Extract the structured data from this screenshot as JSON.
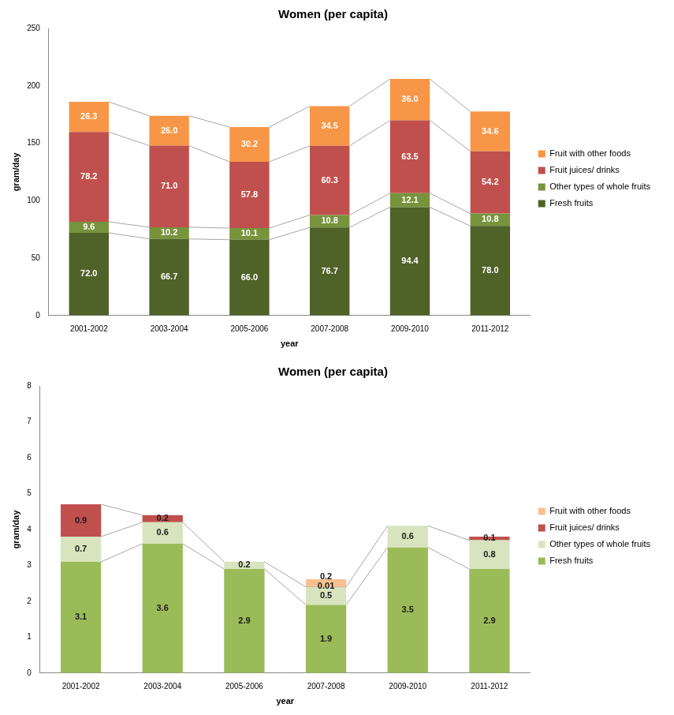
{
  "chart_data": [
    {
      "type": "bar",
      "title": "Women (per capita)",
      "x_label": "year",
      "y_label": "gram/day",
      "stacked": true,
      "grid": false,
      "legend": "right",
      "data_labels": true,
      "categories": [
        "2001-2002",
        "2003-2004",
        "2005-2006",
        "2007-2008",
        "2009-2010",
        "2011-2012"
      ],
      "ylim": [
        0,
        250
      ],
      "yticks": [
        0,
        50,
        100,
        150,
        200,
        250
      ],
      "series": [
        {
          "name": "Fresh fruits",
          "color": "#4f6228",
          "values": [
            72.0,
            66.7,
            66.0,
            76.7,
            94.4,
            78.0
          ],
          "value_labels": [
            "72.0",
            "66.7",
            "66.0",
            "76.7",
            "94.4",
            "78.0"
          ]
        },
        {
          "name": "Other types of whole fruits",
          "color": "#77933c",
          "values": [
            9.6,
            10.2,
            10.1,
            10.8,
            12.1,
            10.8
          ],
          "value_labels": [
            "9.6",
            "10.2",
            "10.1",
            "10.8",
            "12.1",
            "10.8"
          ]
        },
        {
          "name": "Fruit juices/ drinks",
          "color": "#c0504d",
          "values": [
            78.2,
            71.0,
            57.8,
            60.3,
            63.5,
            54.2
          ],
          "value_labels": [
            "78.2",
            "71.0",
            "57.8",
            "60.3",
            "63.5",
            "54.2"
          ]
        },
        {
          "name": "Fruit with other foods",
          "color": "#f79646",
          "values": [
            26.3,
            26.0,
            30.2,
            34.5,
            36.0,
            34.6
          ],
          "value_labels": [
            "26.3",
            "26.0",
            "30.2",
            "34.5",
            "36.0",
            "34.6"
          ]
        }
      ]
    },
    {
      "type": "bar",
      "title": "Women (per capita)",
      "x_label": "year",
      "y_label": "gram/day",
      "stacked": true,
      "grid": false,
      "legend": "right",
      "data_labels": true,
      "categories": [
        "2001-2002",
        "2003-2004",
        "2005-2006",
        "2007-2008",
        "2009-2010",
        "2011-2012"
      ],
      "ylim": [
        0,
        8
      ],
      "yticks": [
        0,
        1,
        2,
        3,
        4,
        5,
        6,
        7,
        8
      ],
      "series": [
        {
          "name": "Fresh fruits",
          "color": "#9bbb59",
          "values": [
            3.1,
            3.6,
            2.9,
            1.9,
            3.5,
            2.9
          ]
        },
        {
          "name": "Other types of whole fruits",
          "color": "#d7e4bd",
          "values": [
            0.7,
            0.6,
            0.2,
            0.5,
            0.6,
            0.8
          ]
        },
        {
          "name": "Fruit juices/ drinks",
          "color": "#c0504d",
          "values": [
            0.9,
            0.2,
            null,
            0.01,
            null,
            0.1
          ]
        },
        {
          "name": "Fruit with other foods",
          "color": "#fac090",
          "values": [
            null,
            null,
            null,
            0.2,
            null,
            null
          ]
        }
      ]
    }
  ]
}
